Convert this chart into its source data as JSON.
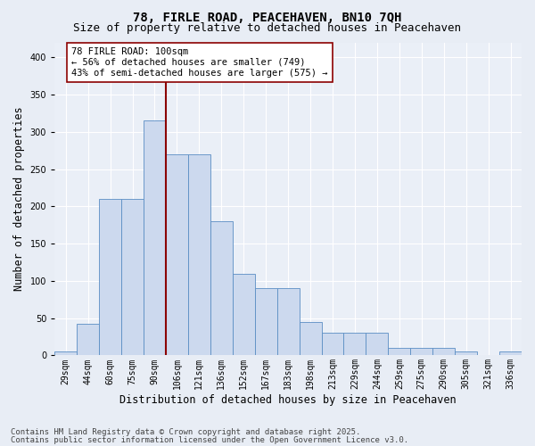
{
  "title_line1": "78, FIRLE ROAD, PEACEHAVEN, BN10 7QH",
  "title_line2": "Size of property relative to detached houses in Peacehaven",
  "xlabel": "Distribution of detached houses by size in Peacehaven",
  "ylabel": "Number of detached properties",
  "categories": [
    "29sqm",
    "44sqm",
    "60sqm",
    "75sqm",
    "90sqm",
    "106sqm",
    "121sqm",
    "136sqm",
    "152sqm",
    "167sqm",
    "183sqm",
    "198sqm",
    "213sqm",
    "229sqm",
    "244sqm",
    "259sqm",
    "275sqm",
    "290sqm",
    "305sqm",
    "321sqm",
    "336sqm"
  ],
  "values": [
    5,
    42,
    210,
    210,
    315,
    270,
    270,
    180,
    110,
    90,
    90,
    45,
    30,
    30,
    30,
    10,
    10,
    10,
    5,
    0,
    5
  ],
  "bar_color": "#ccd9ee",
  "bar_edge_color": "#5b8ec4",
  "vline_color": "#8b0000",
  "annotation_text": "78 FIRLE ROAD: 100sqm\n← 56% of detached houses are smaller (749)\n43% of semi-detached houses are larger (575) →",
  "annotation_box_color": "#ffffff",
  "annotation_box_edge": "#8b0000",
  "ylim": [
    0,
    420
  ],
  "yticks": [
    0,
    50,
    100,
    150,
    200,
    250,
    300,
    350,
    400
  ],
  "bg_color": "#e8edf5",
  "plot_bg_color": "#eaeff7",
  "footer_line1": "Contains HM Land Registry data © Crown copyright and database right 2025.",
  "footer_line2": "Contains public sector information licensed under the Open Government Licence v3.0.",
  "title_fontsize": 10,
  "subtitle_fontsize": 9,
  "axis_label_fontsize": 8.5,
  "tick_fontsize": 7,
  "annotation_fontsize": 7.5,
  "footer_fontsize": 6.5
}
